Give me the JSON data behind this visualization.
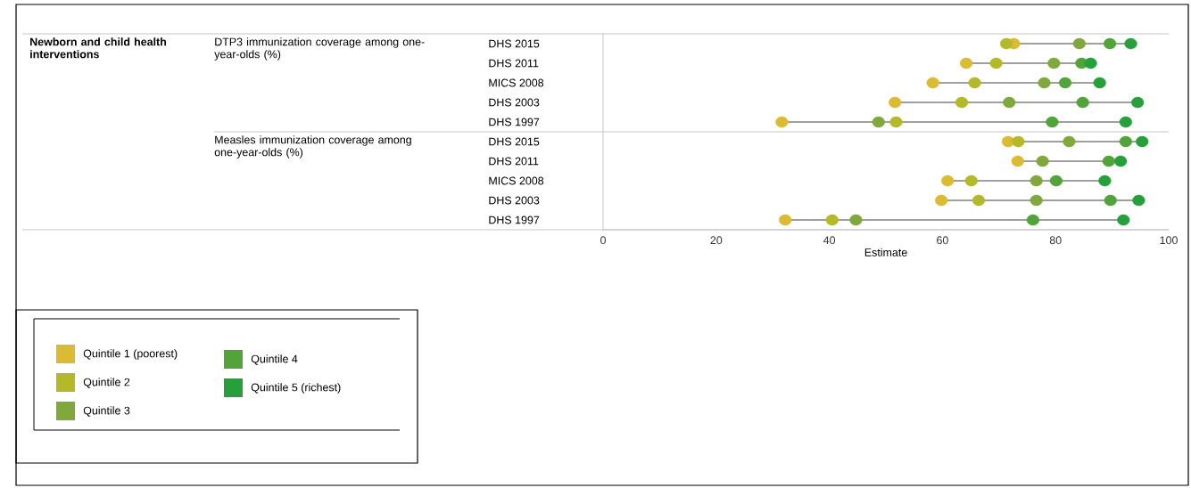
{
  "chart_data": {
    "type": "scatter",
    "orientation": "horizontal",
    "xlabel": "Estimate",
    "annotations": [
      "Newborn and child health interventions",
      "DTP3 immunization coverage among one-year-olds (%)",
      "Measles immunization coverage among one-year-olds (%)"
    ],
    "categories": [
      "DHS 2015",
      "DHS 2011",
      "MICS 2008",
      "DHS 2003",
      "DHS 1997",
      "DHS 2015",
      "DHS 2011",
      "MICS 2008",
      "DHS 2003",
      "DHS 1997"
    ],
    "xlim": [
      0,
      100
    ],
    "xticks": [
      0,
      20,
      40,
      60,
      80,
      100
    ],
    "grid": false,
    "legend": "bottom left",
    "marker": "circle",
    "series": [
      {
        "name": "Quintile 1 (poorest)",
        "color": "#dbbb33",
        "values": [
          72.6,
          64.2,
          58.3,
          51.6,
          31.6,
          71.6,
          73.3,
          60.9,
          59.8,
          32.2
        ]
      },
      {
        "name": "Quintile 2",
        "color": "#b3b928",
        "values": [
          71.3,
          69.5,
          65.7,
          63.4,
          51.8,
          73.4,
          null,
          65.1,
          66.4,
          40.5
        ]
      },
      {
        "name": "Quintile 3",
        "color": "#80a83c",
        "values": [
          84.2,
          79.7,
          78.0,
          71.8,
          48.7,
          82.4,
          77.7,
          76.6,
          76.6,
          44.7
        ]
      },
      {
        "name": "Quintile 4",
        "color": "#52a33a",
        "values": [
          89.6,
          84.6,
          81.7,
          84.8,
          79.4,
          92.4,
          89.4,
          80.1,
          89.7,
          76.0
        ]
      },
      {
        "name": "Quintile 5 (richest)",
        "color": "#27a03c",
        "values": [
          93.3,
          86.2,
          87.8,
          94.5,
          92.4,
          95.3,
          91.5,
          88.7,
          94.7,
          92.0
        ]
      }
    ]
  }
}
